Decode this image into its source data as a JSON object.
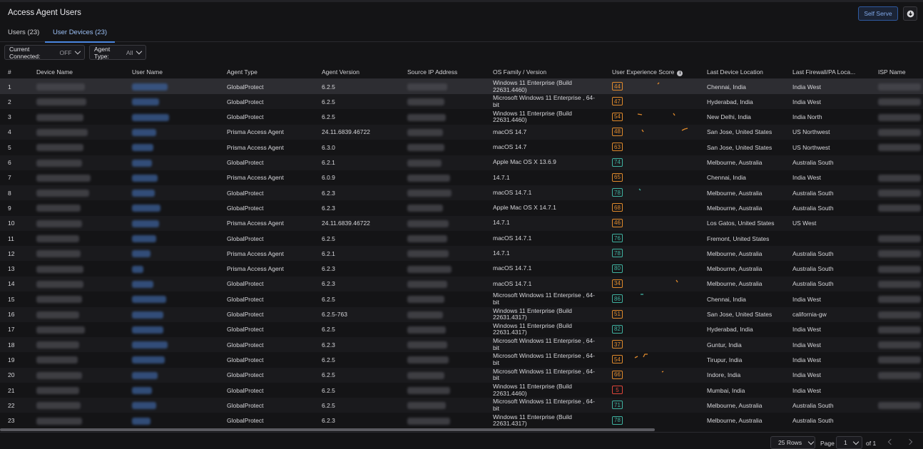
{
  "header": {
    "title": "Access Agent Users",
    "self_serve_label": "Self Serve",
    "download_icon": "download-icon"
  },
  "tabs": [
    {
      "label": "Users (23)",
      "active": false
    },
    {
      "label": "User Devices (23)",
      "active": true
    }
  ],
  "filters": {
    "current_connected": {
      "label": "Current Connected:",
      "value": "OFF"
    },
    "agent_type": {
      "label": "Agent Type:",
      "value": "All"
    }
  },
  "columns": [
    "#",
    "Device Name",
    "User Name",
    "Agent Type",
    "Agent Version",
    "Source IP Address",
    "OS Family / Version",
    "User Experience Score",
    "Last Device Location",
    "Last Firewall/PA Loca...",
    "ISP Name"
  ],
  "colors": {
    "score_good": "#3fb2a0",
    "score_fair": "#e08a2c",
    "score_poor": "#e0453a",
    "link": "#4a86e0"
  },
  "rows": [
    {
      "n": "1",
      "agent": "GlobalProtect",
      "ver": "6.2.5",
      "os": "Windows 11 Enterprise (Build 22631.4460)",
      "score": "44",
      "loc": "Chennai, India",
      "fw": "India West"
    },
    {
      "n": "2",
      "agent": "GlobalProtect",
      "ver": "6.2.5",
      "os": "Microsoft Windows 11 Enterprise , 64-bit",
      "score": "47",
      "loc": "Hyderabad, India",
      "fw": "India West"
    },
    {
      "n": "3",
      "agent": "GlobalProtect",
      "ver": "6.2.5",
      "os": "Windows 11 Enterprise (Build 22631.4460)",
      "score": "54",
      "loc": "New Delhi, India",
      "fw": "India North"
    },
    {
      "n": "4",
      "agent": "Prisma Access Agent",
      "ver": "24.11.6839.46722",
      "os": "macOS 14.7",
      "score": "48",
      "loc": "San Jose, United States",
      "fw": "US Northwest"
    },
    {
      "n": "5",
      "agent": "Prisma Access Agent",
      "ver": "6.3.0",
      "os": "macOS 14.7",
      "score": "63",
      "loc": "San Jose, United States",
      "fw": "US Northwest"
    },
    {
      "n": "6",
      "agent": "GlobalProtect",
      "ver": "6.2.1",
      "os": "Apple Mac OS X 13.6.9",
      "score": "74",
      "loc": "Melbourne, Australia",
      "fw": "Australia South"
    },
    {
      "n": "7",
      "agent": "Prisma Access Agent",
      "ver": "6.0.9",
      "os": "14.7.1",
      "score": "65",
      "loc": "Chennai, India",
      "fw": "India West"
    },
    {
      "n": "8",
      "agent": "GlobalProtect",
      "ver": "6.2.3",
      "os": "macOS 14.7.1",
      "score": "78",
      "loc": "Melbourne, Australia",
      "fw": "Australia South"
    },
    {
      "n": "9",
      "agent": "GlobalProtect",
      "ver": "6.2.3",
      "os": "Apple Mac OS X 14.7.1",
      "score": "68",
      "loc": "Melbourne, Australia",
      "fw": "Australia South"
    },
    {
      "n": "10",
      "agent": "Prisma Access Agent",
      "ver": "24.11.6839.46722",
      "os": "14.7.1",
      "score": "46",
      "loc": "Los Gatos, United States",
      "fw": "US West"
    },
    {
      "n": "11",
      "agent": "GlobalProtect",
      "ver": "6.2.5",
      "os": "macOS 14.7.1",
      "score": "76",
      "loc": "Fremont, United States",
      "fw": ""
    },
    {
      "n": "12",
      "agent": "Prisma Access Agent",
      "ver": "6.2.1",
      "os": "14.7.1",
      "score": "78",
      "loc": "Melbourne, Australia",
      "fw": "Australia South"
    },
    {
      "n": "13",
      "agent": "Prisma Access Agent",
      "ver": "6.2.3",
      "os": "macOS 14.7.1",
      "score": "80",
      "loc": "Melbourne, Australia",
      "fw": "Australia South"
    },
    {
      "n": "14",
      "agent": "GlobalProtect",
      "ver": "6.2.3",
      "os": "macOS 14.7.1",
      "score": "34",
      "loc": "Melbourne, Australia",
      "fw": "Australia South"
    },
    {
      "n": "15",
      "agent": "GlobalProtect",
      "ver": "6.2.5",
      "os": "Microsoft Windows 11 Enterprise , 64-bit",
      "score": "86",
      "loc": "Chennai, India",
      "fw": "India West"
    },
    {
      "n": "16",
      "agent": "GlobalProtect",
      "ver": "6.2.5-763",
      "os": "Windows 11 Enterprise (Build 22631.4317)",
      "score": "51",
      "loc": "San Jose, United States",
      "fw": "california-gw"
    },
    {
      "n": "17",
      "agent": "GlobalProtect",
      "ver": "6.2.5",
      "os": "Windows 11 Enterprise (Build 22631.4317)",
      "score": "82",
      "loc": "Hyderabad, India",
      "fw": "India West"
    },
    {
      "n": "18",
      "agent": "GlobalProtect",
      "ver": "6.2.3",
      "os": "Microsoft Windows 11 Enterprise , 64-bit",
      "score": "37",
      "loc": "Guntur, India",
      "fw": "India West"
    },
    {
      "n": "19",
      "agent": "GlobalProtect",
      "ver": "6.2.5",
      "os": "Microsoft Windows 11 Enterprise , 64-bit",
      "score": "54",
      "loc": "Tirupur, India",
      "fw": "India West"
    },
    {
      "n": "20",
      "agent": "GlobalProtect",
      "ver": "6.2.5",
      "os": "Microsoft Windows 11 Enterprise , 64-bit",
      "score": "66",
      "loc": "Indore, India",
      "fw": "India West"
    },
    {
      "n": "21",
      "agent": "GlobalProtect",
      "ver": "6.2.5",
      "os": "Windows 11 Enterprise (Build 22631.4460)",
      "score": "5",
      "loc": "Mumbai, India",
      "fw": "India West"
    },
    {
      "n": "22",
      "agent": "GlobalProtect",
      "ver": "6.2.5",
      "os": "Microsoft Windows 11 Enterprise , 64-bit",
      "score": "71",
      "loc": "Melbourne, Australia",
      "fw": "Australia South"
    },
    {
      "n": "23",
      "agent": "GlobalProtect",
      "ver": "6.2.3",
      "os": "Windows 11 Enterprise (Build 22631.4317)",
      "score": "78",
      "loc": "Melbourne, Australia",
      "fw": "Australia South"
    }
  ],
  "pagination": {
    "rows_label": "25 Rows",
    "page_label": "Page",
    "page_value": "1",
    "of_label": "of 1"
  }
}
